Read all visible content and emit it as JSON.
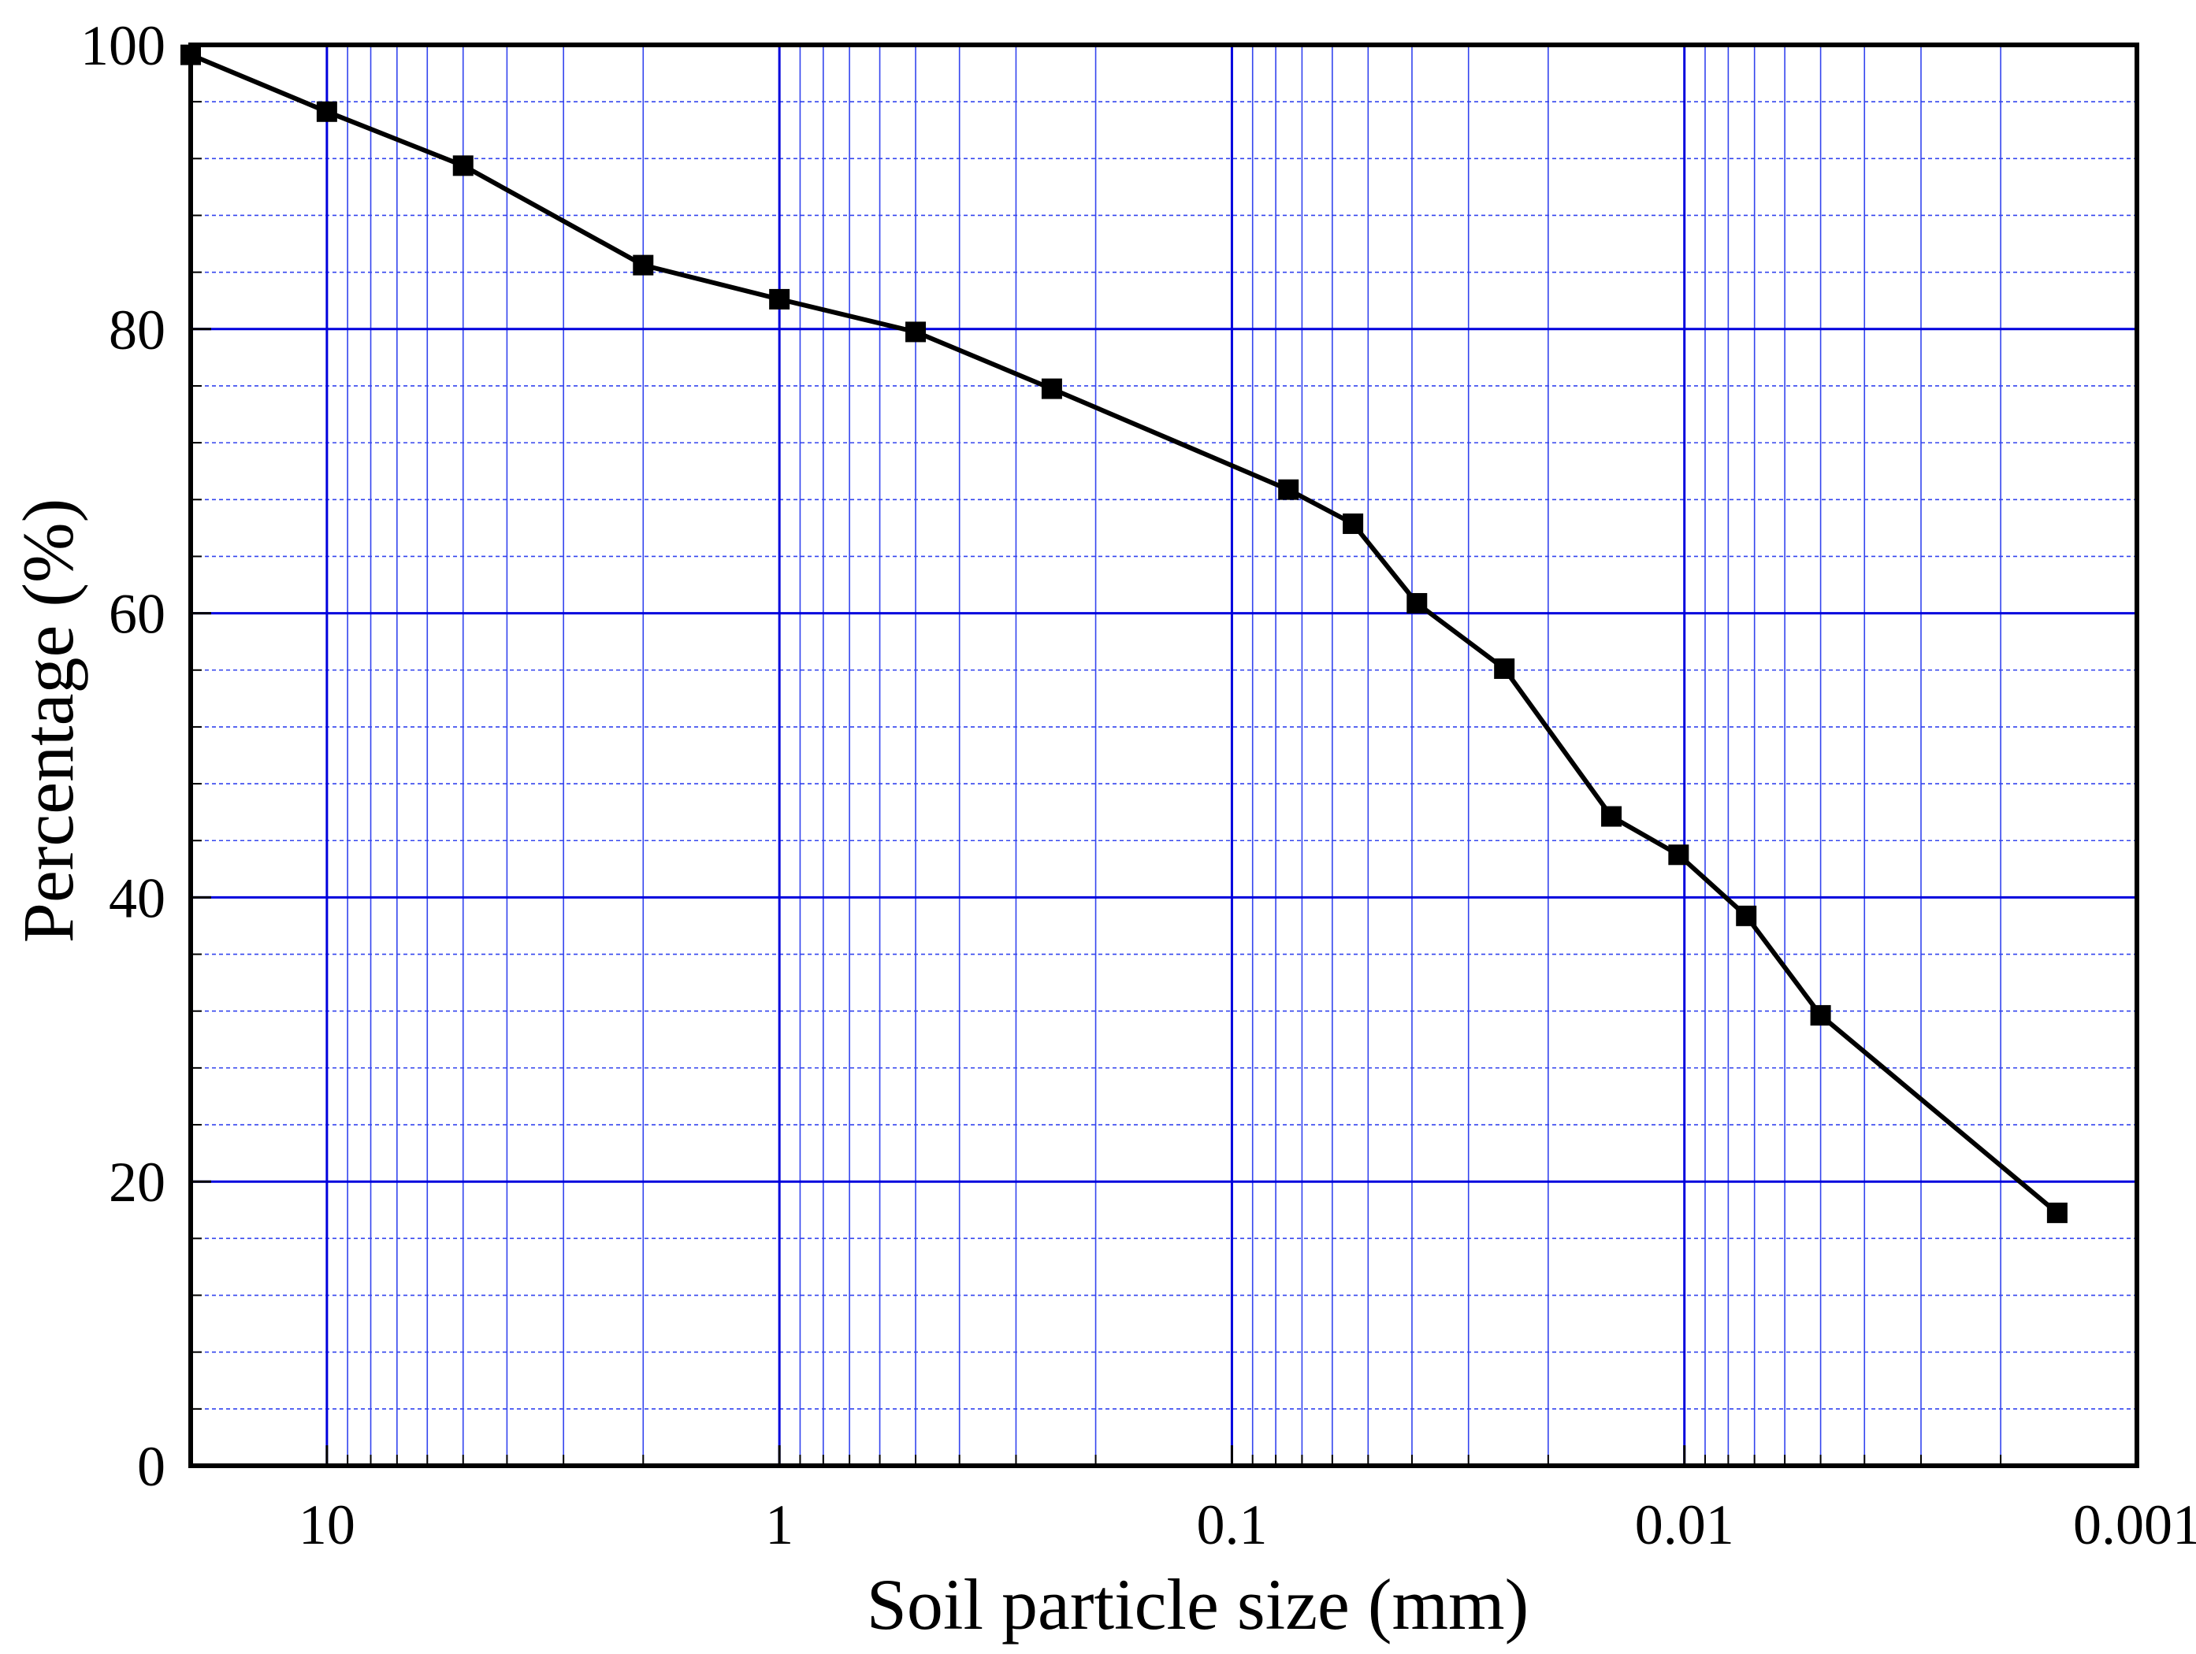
{
  "chart_data": {
    "type": "line",
    "title": "",
    "xlabel": "Soil particle size (mm)",
    "ylabel": "Percentage  (%)",
    "x_scale": "log",
    "x_reversed": true,
    "xlim": [
      20,
      0.001
    ],
    "ylim": [
      0,
      100
    ],
    "x_ticks": [
      10,
      1,
      0.1,
      0.01,
      0.001
    ],
    "x_tick_labels": [
      "10",
      "1",
      "0.1",
      "0.01",
      "0.001"
    ],
    "y_ticks": [
      0,
      20,
      40,
      60,
      80,
      100
    ],
    "y_tick_labels": [
      "0",
      "20",
      "40",
      "60",
      "80",
      "100"
    ],
    "grid": true,
    "grid_major_color": "#0000dd",
    "grid_minor_color": "#3344ee",
    "line_color": "#000000",
    "marker": "square",
    "series": [
      {
        "x": [
          20,
          10,
          5,
          2,
          1,
          0.5,
          0.25,
          0.075,
          0.054,
          0.039,
          0.025,
          0.0145,
          0.0103,
          0.0073,
          0.005,
          0.0015
        ],
        "y": [
          99.3,
          95.3,
          91.5,
          84.5,
          82.1,
          79.8,
          75.8,
          68.7,
          66.3,
          60.7,
          56.1,
          45.7,
          43.0,
          38.7,
          31.7,
          17.8
        ]
      }
    ]
  }
}
